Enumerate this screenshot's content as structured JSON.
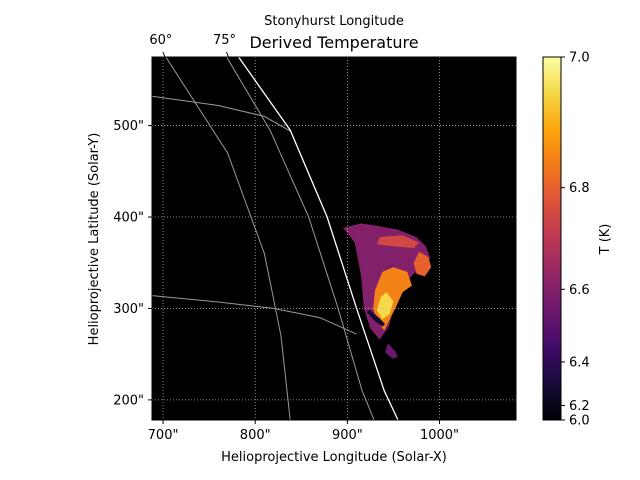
{
  "chart_data": {
    "type": "heatmap",
    "title": "Derived Temperature",
    "top_axis_label": "Stonyhurst Longitude",
    "xlabel": "Helioprojective Longitude (Solar-X)",
    "ylabel": "Helioprojective Latitude (Solar-Y)",
    "xlim": [
      688,
      1083
    ],
    "ylim": [
      178,
      575
    ],
    "x_ticks": [
      700,
      800,
      900,
      1000
    ],
    "x_tick_labels": [
      "700\"",
      "800\"",
      "900\"",
      "1000\""
    ],
    "y_ticks": [
      200,
      300,
      400,
      500
    ],
    "y_tick_labels": [
      "200\"",
      "300\"",
      "400\"",
      "500\""
    ],
    "top_ticks": [
      {
        "label": "60°",
        "x": 702
      },
      {
        "label": "75°",
        "x": 771
      }
    ],
    "grid": true,
    "background_color": "#000000",
    "colorbar": {
      "label": "T (K)",
      "min": 6.0,
      "max": 7.0,
      "scale": "power",
      "ticks": [
        6.0,
        6.2,
        6.4,
        6.6,
        6.8,
        7.0
      ],
      "tick_labels": [
        "6.0",
        "6.2",
        "6.4",
        "6.6",
        "6.8",
        "7.0"
      ],
      "colormap": "inferno"
    },
    "limb": {
      "color": "#ffffff",
      "points": [
        [
          782,
          575
        ],
        [
          838,
          495
        ],
        [
          878,
          400
        ],
        [
          910,
          300
        ],
        [
          940,
          210
        ],
        [
          955,
          178
        ]
      ]
    },
    "coordinate_grid": {
      "color": "#9a9a9a",
      "meridians": [
        {
          "label": "60°",
          "points": [
            [
              703,
              575
            ],
            [
              770,
              470
            ],
            [
              810,
              360
            ],
            [
              828,
              270
            ],
            [
              838,
              178
            ]
          ]
        },
        {
          "label": "75°",
          "points": [
            [
              769,
              575
            ],
            [
              816,
              495
            ],
            [
              858,
              400
            ],
            [
              890,
              300
            ],
            [
              916,
              210
            ],
            [
              929,
              178
            ]
          ]
        }
      ],
      "parallels": [
        {
          "points": [
            [
              688,
              532
            ],
            [
              760,
              522
            ],
            [
              810,
              510
            ],
            [
              838,
              494
            ]
          ]
        },
        {
          "points": [
            [
              688,
              314
            ],
            [
              760,
              307
            ],
            [
              820,
              300
            ],
            [
              870,
              290
            ],
            [
              910,
              272
            ]
          ]
        }
      ]
    },
    "regions": [
      {
        "name": "outer-envelope",
        "T": 6.6,
        "points": [
          [
            895,
            388
          ],
          [
            915,
            393
          ],
          [
            935,
            390
          ],
          [
            955,
            386
          ],
          [
            975,
            378
          ],
          [
            985,
            368
          ],
          [
            990,
            355
          ],
          [
            982,
            345
          ],
          [
            972,
            338
          ],
          [
            960,
            325
          ],
          [
            950,
            300
          ],
          [
            945,
            280
          ],
          [
            935,
            266
          ],
          [
            925,
            278
          ],
          [
            918,
            300
          ],
          [
            915,
            335
          ],
          [
            908,
            372
          ],
          [
            898,
            385
          ]
        ]
      },
      {
        "name": "tail",
        "T": 6.55,
        "points": [
          [
            944,
            262
          ],
          [
            952,
            253
          ],
          [
            955,
            247
          ],
          [
            949,
            245
          ],
          [
            941,
            252
          ]
        ]
      },
      {
        "name": "hot-core",
        "T": 6.85,
        "points": [
          [
            950,
            345
          ],
          [
            965,
            340
          ],
          [
            970,
            325
          ],
          [
            960,
            318
          ],
          [
            952,
            300
          ],
          [
            945,
            286
          ],
          [
            940,
            276
          ],
          [
            932,
            286
          ],
          [
            928,
            300
          ],
          [
            930,
            320
          ],
          [
            938,
            340
          ]
        ]
      },
      {
        "name": "hottest-core",
        "T": 6.95,
        "points": [
          [
            942,
            318
          ],
          [
            950,
            308
          ],
          [
            946,
            294
          ],
          [
            938,
            288
          ],
          [
            932,
            298
          ],
          [
            936,
            312
          ]
        ]
      },
      {
        "name": "right-lobe",
        "T": 6.8,
        "points": [
          [
            978,
            362
          ],
          [
            988,
            356
          ],
          [
            991,
            345
          ],
          [
            984,
            335
          ],
          [
            975,
            338
          ],
          [
            972,
            350
          ]
        ]
      },
      {
        "name": "upper-band",
        "T": 6.75,
        "points": [
          [
            935,
            378
          ],
          [
            960,
            380
          ],
          [
            978,
            372
          ],
          [
            972,
            366
          ],
          [
            950,
            368
          ],
          [
            932,
            370
          ]
        ]
      },
      {
        "name": "cool-strip",
        "T": 6.3,
        "points": [
          [
            924,
            299
          ],
          [
            934,
            290
          ],
          [
            941,
            283
          ],
          [
            938,
            280
          ],
          [
            930,
            286
          ],
          [
            921,
            296
          ]
        ]
      }
    ]
  }
}
